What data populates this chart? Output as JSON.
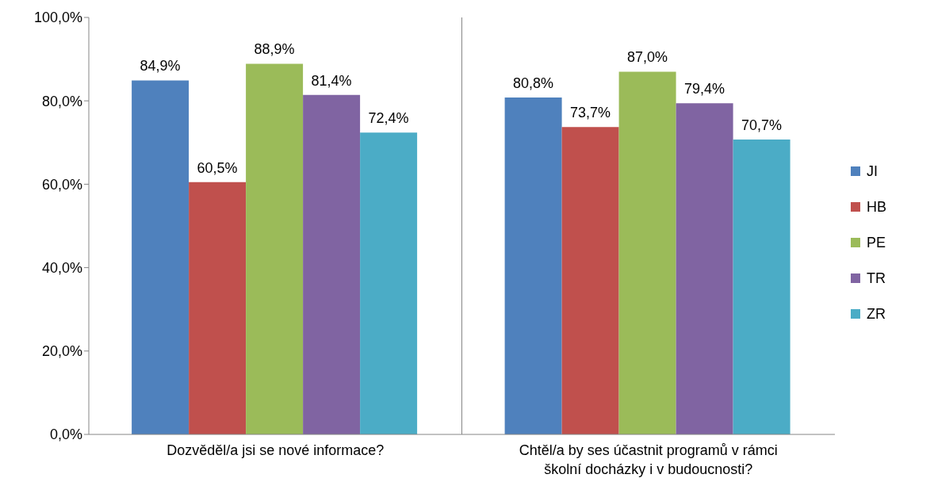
{
  "chart_data": {
    "type": "bar",
    "categories": [
      "Dozvěděl/a jsi se nové informace?",
      "Chtěl/a by ses účastnit programů v rámci školní docházky i v budoucnosti?"
    ],
    "series": [
      {
        "name": "JI",
        "color": "#4f81bd",
        "values": [
          84.9,
          80.8
        ],
        "value_labels": [
          "84,9%",
          "80,8%"
        ]
      },
      {
        "name": "HB",
        "color": "#c0504d",
        "values": [
          60.5,
          73.7
        ],
        "value_labels": [
          "60,5%",
          "73,7%"
        ]
      },
      {
        "name": "PE",
        "color": "#9bbb59",
        "values": [
          88.9,
          87.0
        ],
        "value_labels": [
          "88,9%",
          "87,0%"
        ]
      },
      {
        "name": "TR",
        "color": "#8064a2",
        "values": [
          81.4,
          79.4
        ],
        "value_labels": [
          "81,4%",
          "79,4%"
        ]
      },
      {
        "name": "ZR",
        "color": "#4bacc6",
        "values": [
          72.4,
          70.7
        ],
        "value_labels": [
          "72,4%",
          "70,7%"
        ]
      }
    ],
    "ylim": [
      0,
      100
    ],
    "yticks": [
      {
        "value": 0,
        "label": "0,0%"
      },
      {
        "value": 20,
        "label": "20,0%"
      },
      {
        "value": 40,
        "label": "40,0%"
      },
      {
        "value": 60,
        "label": "60,0%"
      },
      {
        "value": 80,
        "label": "80,0%"
      },
      {
        "value": 100,
        "label": "100,0%"
      }
    ],
    "grid": "x",
    "legend": "right"
  }
}
